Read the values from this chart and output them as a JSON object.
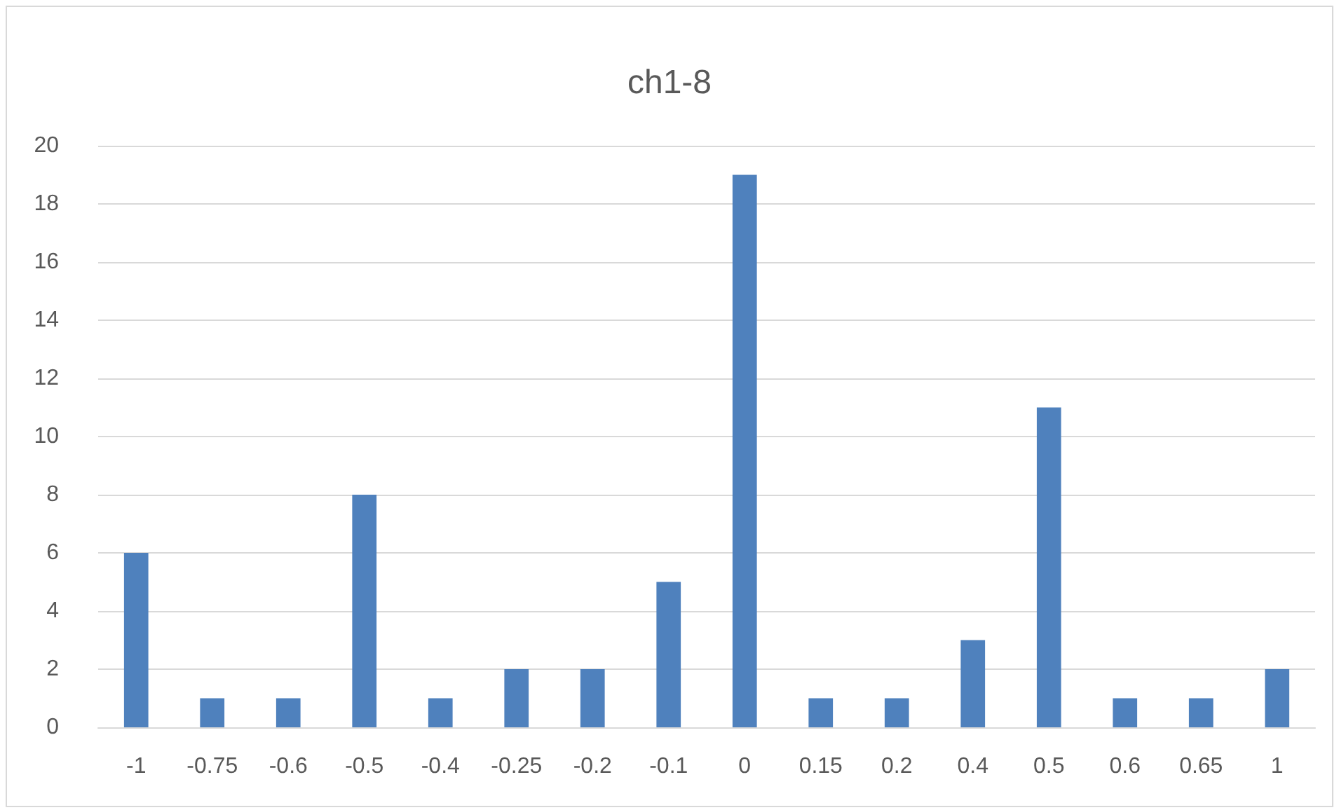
{
  "chart_data": {
    "type": "bar",
    "title": "ch1-8",
    "categories": [
      "-1",
      "-0.75",
      "-0.6",
      "-0.5",
      "-0.4",
      "-0.25",
      "-0.2",
      "-0.1",
      "0",
      "0.15",
      "0.2",
      "0.4",
      "0.5",
      "0.6",
      "0.65",
      "1"
    ],
    "values": [
      6,
      1,
      1,
      8,
      1,
      2,
      2,
      5,
      19,
      1,
      1,
      3,
      11,
      1,
      1,
      2
    ],
    "color": "#4f81bd",
    "ylim": [
      0,
      20
    ],
    "yticks": [
      0,
      2,
      4,
      6,
      8,
      10,
      12,
      14,
      16,
      18,
      20
    ],
    "grid": "y"
  }
}
